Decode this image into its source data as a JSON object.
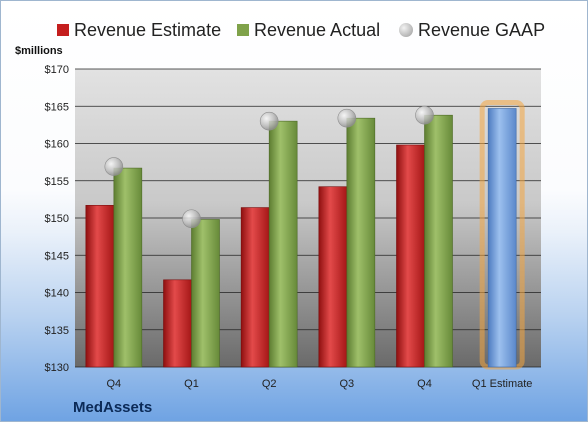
{
  "legend": {
    "estimate": "Revenue Estimate",
    "actual": "Revenue Actual",
    "gaap": "Revenue GAAP"
  },
  "y_unit": "$millions",
  "brand": "MedAssets",
  "colors": {
    "estimate": "#c41e1e",
    "actual": "#7fa24a",
    "gaap": "#b8b8b8",
    "forecast": "#6e9bd8",
    "forecast_glow": "#f4a540"
  },
  "chart_data": {
    "type": "bar",
    "categories": [
      "Q4",
      "Q1",
      "Q2",
      "Q3",
      "Q4",
      "Q1 Estimate"
    ],
    "ylim": [
      130,
      170
    ],
    "yticks": [
      130,
      135,
      140,
      145,
      150,
      155,
      160,
      165,
      170
    ],
    "ytick_labels": [
      "$130",
      "$135",
      "$140",
      "$145",
      "$150",
      "$155",
      "$160",
      "$165",
      "$170"
    ],
    "xlabel": "",
    "ylabel": "$millions",
    "grid": true,
    "legend_position": "top",
    "series": [
      {
        "name": "Revenue Estimate",
        "type": "bar",
        "values": [
          151.7,
          141.7,
          151.4,
          154.2,
          159.8,
          164.7
        ]
      },
      {
        "name": "Revenue Actual",
        "type": "bar",
        "values": [
          156.7,
          149.8,
          163.0,
          163.4,
          163.8,
          null
        ]
      },
      {
        "name": "Revenue GAAP",
        "type": "marker",
        "values": [
          156.9,
          149.9,
          163.0,
          163.4,
          163.8,
          null
        ]
      }
    ]
  }
}
